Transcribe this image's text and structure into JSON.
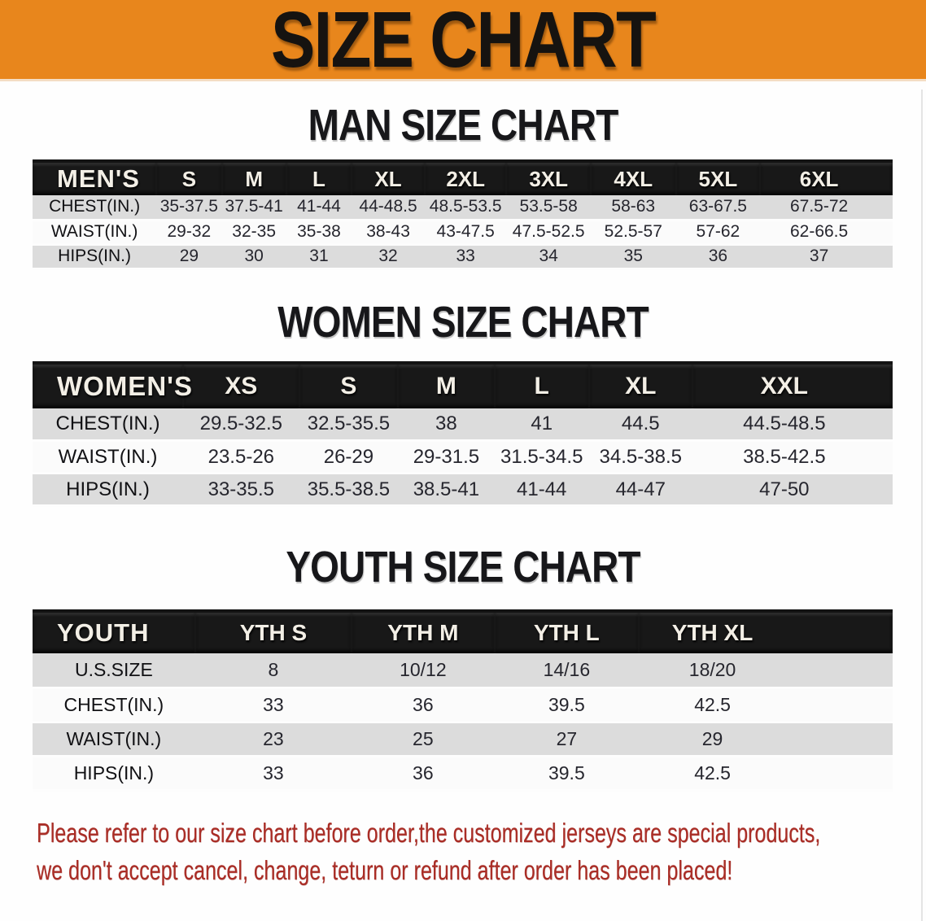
{
  "banner": {
    "title": "SIZE CHART",
    "bg_color": "#e8861c",
    "text_color": "#161310"
  },
  "chart_data": [
    {
      "type": "table",
      "title": "MAN SIZE CHART",
      "corner_label": "MEN'S",
      "columns": [
        "S",
        "M",
        "L",
        "XL",
        "2XL",
        "3XL",
        "4XL",
        "5XL",
        "6XL"
      ],
      "rows": [
        {
          "label": "CHEST(IN.)",
          "values": [
            "35-37.5",
            "37.5-41",
            "41-44",
            "44-48.5",
            "48.5-53.5",
            "53.5-58",
            "58-63",
            "63-67.5",
            "67.5-72"
          ]
        },
        {
          "label": "WAIST(IN.)",
          "values": [
            "29-32",
            "32-35",
            "35-38",
            "38-43",
            "43-47.5",
            "47.5-52.5",
            "52.5-57",
            "57-62",
            "62-66.5"
          ]
        },
        {
          "label": "HIPS(IN.)",
          "values": [
            "29",
            "30",
            "31",
            "32",
            "33",
            "34",
            "35",
            "36",
            "37"
          ]
        }
      ]
    },
    {
      "type": "table",
      "title": "WOMEN SIZE CHART",
      "corner_label": "WOMEN'S",
      "columns": [
        "XS",
        "S",
        "M",
        "L",
        "XL",
        "XXL"
      ],
      "rows": [
        {
          "label": "CHEST(IN.)",
          "values": [
            "29.5-32.5",
            "32.5-35.5",
            "38",
            "41",
            "44.5",
            "44.5-48.5"
          ]
        },
        {
          "label": "WAIST(IN.)",
          "values": [
            "23.5-26",
            "26-29",
            "29-31.5",
            "31.5-34.5",
            "34.5-38.5",
            "38.5-42.5"
          ]
        },
        {
          "label": "HIPS(IN.)",
          "values": [
            "33-35.5",
            "35.5-38.5",
            "38.5-41",
            "41-44",
            "44-47",
            "47-50"
          ]
        }
      ]
    },
    {
      "type": "table",
      "title": "YOUTH SIZE CHART",
      "corner_label": "YOUTH",
      "columns": [
        "YTH S",
        "YTH M",
        "YTH L",
        "YTH XL"
      ],
      "rows": [
        {
          "label": "U.S.SIZE",
          "values": [
            "8",
            "10/12",
            "14/16",
            "18/20"
          ]
        },
        {
          "label": "CHEST(IN.)",
          "values": [
            "33",
            "36",
            "39.5",
            "42.5"
          ]
        },
        {
          "label": "WAIST(IN.)",
          "values": [
            "23",
            "25",
            "27",
            "29"
          ]
        },
        {
          "label": "HIPS(IN.)",
          "values": [
            "33",
            "36",
            "39.5",
            "42.5"
          ]
        }
      ]
    }
  ],
  "footer": {
    "lines": [
      "Please refer to our size chart before order,the customized jerseys are special products,",
      "we don't accept cancel, change, teturn or refund after order has been placed!"
    ],
    "text_color": "#aa2d26"
  },
  "colors": {
    "banner_orange": "#e8861c",
    "table_header_black": "#181818",
    "row_gray": "#dcdcdc",
    "row_white": "#fbfbfb",
    "disclaimer_red": "#aa2d26"
  }
}
